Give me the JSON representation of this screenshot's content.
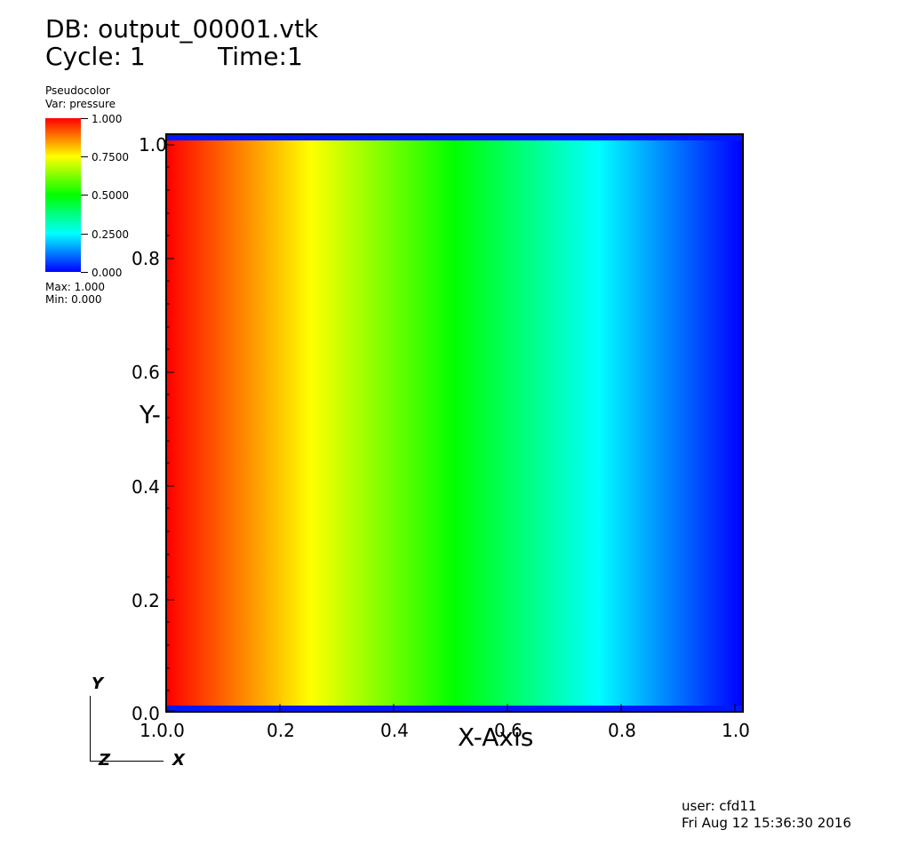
{
  "header": {
    "db_label": "DB: output_00001.vtk",
    "cycle_label": "Cycle: 1",
    "time_label": "Time:1"
  },
  "legend": {
    "plot_type": "Pseudocolor",
    "var_label": "Var: pressure",
    "ticks": [
      "1.000",
      "0.7500",
      "0.5000",
      "0.2500",
      "0.000"
    ],
    "max_label": "Max:  1.000",
    "min_label": "Min:  0.000",
    "colors": [
      "#ff0000",
      "#ffff00",
      "#00ff00",
      "#00ffff",
      "#0000ff"
    ]
  },
  "axes": {
    "x_title": "X-Axis",
    "y_title": "Y-",
    "x_ticks": [
      "1.0.0",
      "0.2",
      "0.4",
      "0.6",
      "0.8",
      "1.0"
    ],
    "y_ticks": [
      "1.0",
      "0.8",
      "0.6",
      "0.4",
      "0.2",
      "0.0"
    ]
  },
  "triad": {
    "y": "Y",
    "z": "Z",
    "x": "X"
  },
  "footer": {
    "user": "user: cfd11",
    "date": "Fri Aug 12 15:36:30 2016"
  }
}
